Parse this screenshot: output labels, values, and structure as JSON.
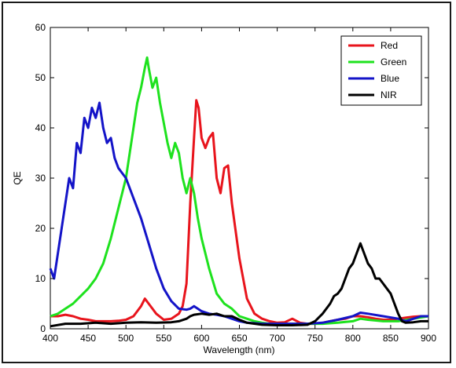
{
  "chart_data": {
    "type": "line",
    "title": "",
    "xlabel": "Wavelength (nm)",
    "ylabel": "QE",
    "xlim": [
      400,
      900
    ],
    "ylim": [
      0,
      60
    ],
    "xticks": [
      400,
      450,
      500,
      550,
      600,
      650,
      700,
      750,
      800,
      850,
      900
    ],
    "yticks": [
      0,
      10,
      20,
      30,
      40,
      50,
      60
    ],
    "grid": false,
    "legend_position": "top-right",
    "series": [
      {
        "name": "Red",
        "color": "#e8141c",
        "x": [
          400,
          410,
          420,
          430,
          440,
          450,
          460,
          470,
          480,
          490,
          500,
          510,
          515,
          520,
          525,
          530,
          535,
          540,
          550,
          560,
          570,
          575,
          580,
          585,
          590,
          593,
          596,
          600,
          605,
          610,
          615,
          620,
          625,
          630,
          635,
          640,
          650,
          660,
          670,
          680,
          690,
          700,
          710,
          720,
          730,
          740,
          750,
          760,
          770,
          780,
          790,
          800,
          810,
          820,
          830,
          840,
          850,
          860,
          870,
          880,
          890,
          900
        ],
        "y": [
          2.5,
          2.5,
          2.8,
          2.5,
          2,
          1.8,
          1.5,
          1.5,
          1.5,
          1.6,
          1.8,
          2.5,
          3.5,
          4.5,
          6,
          5,
          4,
          3,
          1.8,
          2,
          3,
          4.5,
          9,
          25,
          38,
          45.5,
          44,
          38,
          36,
          38,
          39,
          30,
          27,
          32,
          32.5,
          25,
          14,
          6,
          3,
          2,
          1.5,
          1.2,
          1.3,
          2,
          1.2,
          1,
          1,
          1.2,
          1.5,
          1.8,
          2,
          2.5,
          2.5,
          2.3,
          2,
          1.8,
          1.8,
          2,
          2.2,
          2.4,
          2.5,
          2.5
        ]
      },
      {
        "name": "Green",
        "color": "#1ee21e",
        "x": [
          400,
          410,
          420,
          430,
          440,
          450,
          460,
          470,
          480,
          490,
          495,
          500,
          505,
          510,
          515,
          520,
          525,
          528,
          530,
          535,
          540,
          545,
          550,
          555,
          560,
          565,
          570,
          575,
          580,
          585,
          590,
          595,
          600,
          610,
          620,
          630,
          640,
          650,
          660,
          670,
          680,
          690,
          700,
          720,
          740,
          760,
          780,
          800,
          810,
          820,
          840,
          860,
          880,
          900
        ],
        "y": [
          2.5,
          3,
          4,
          5,
          6.5,
          8,
          10,
          13,
          18,
          24,
          27,
          30,
          35,
          40,
          45,
          48,
          52,
          54,
          52,
          48,
          50,
          45,
          41,
          37,
          34,
          37,
          35,
          30,
          27,
          30,
          27,
          22,
          18,
          12,
          7,
          5,
          4,
          2.5,
          2,
          1.5,
          1.2,
          1,
          1,
          1,
          1,
          1,
          1.2,
          1.5,
          2,
          1.8,
          1.5,
          1.5,
          2,
          2.5
        ]
      },
      {
        "name": "Blue",
        "color": "#1414c8",
        "x": [
          400,
          405,
          410,
          415,
          420,
          425,
          430,
          435,
          440,
          445,
          450,
          455,
          460,
          465,
          470,
          475,
          480,
          485,
          490,
          495,
          500,
          510,
          520,
          530,
          540,
          550,
          560,
          570,
          580,
          585,
          590,
          600,
          610,
          620,
          630,
          640,
          650,
          660,
          680,
          700,
          720,
          740,
          760,
          780,
          800,
          810,
          820,
          840,
          860,
          870,
          880,
          890,
          900
        ],
        "y": [
          12,
          10,
          15,
          20,
          25,
          30,
          28,
          37,
          35,
          42,
          40,
          44,
          42,
          45,
          40,
          37,
          38,
          34,
          32,
          31,
          30,
          26,
          22,
          17,
          12,
          8,
          5.5,
          4,
          3.8,
          4,
          4.5,
          3.5,
          3,
          2.8,
          2.5,
          2,
          1.5,
          1.2,
          1,
          1,
          1,
          1,
          1.2,
          1.8,
          2.5,
          3.2,
          3,
          2.5,
          2,
          1.5,
          2,
          2.5,
          2.5
        ]
      },
      {
        "name": "NIR",
        "color": "#000000",
        "x": [
          400,
          420,
          440,
          460,
          480,
          500,
          520,
          540,
          560,
          570,
          580,
          585,
          590,
          600,
          610,
          620,
          630,
          640,
          650,
          660,
          680,
          700,
          720,
          740,
          750,
          760,
          770,
          775,
          780,
          785,
          790,
          795,
          800,
          805,
          810,
          815,
          820,
          825,
          830,
          835,
          840,
          845,
          850,
          855,
          860,
          865,
          870,
          880,
          890,
          900
        ],
        "y": [
          0.5,
          1,
          1,
          1.2,
          1,
          1.2,
          1.3,
          1.2,
          1.3,
          1.5,
          2,
          2.5,
          2.8,
          3,
          2.8,
          3,
          2.5,
          2.5,
          1.8,
          1.2,
          0.8,
          0.7,
          0.7,
          0.8,
          1.5,
          3,
          5,
          6.5,
          7,
          8,
          10,
          12,
          13,
          15,
          17,
          15,
          13,
          12,
          10,
          10,
          9,
          8,
          7,
          5,
          3,
          1.5,
          1.2,
          1.3,
          1.5,
          1.5
        ]
      }
    ]
  }
}
